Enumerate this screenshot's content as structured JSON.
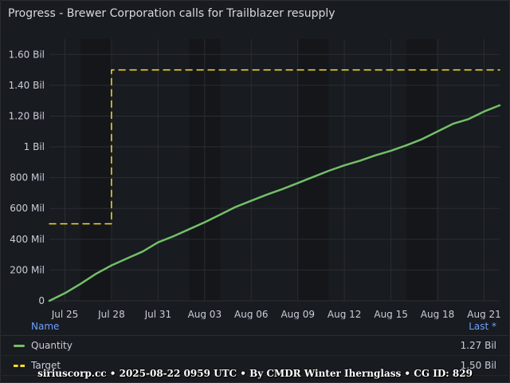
{
  "panel": {
    "title": "Progress - Brewer Corporation calls for Trailblazer resupply"
  },
  "legend": {
    "name_header": "Name",
    "last_header": "Last *",
    "rows": [
      {
        "label": "Quantity",
        "value": "1.27 Bil",
        "color": "#73bf69",
        "style": "solid"
      },
      {
        "label": "Target",
        "value": "1.50 Bil",
        "color": "#fade2a",
        "style": "dashed"
      }
    ]
  },
  "footer": {
    "text": "siriuscorp.cc • 2025-08-22 0959 UTC • By CMDR Winter Ihernglass • CG ID: 829"
  },
  "chart_data": {
    "type": "line",
    "x_ticks": [
      "Jul 25",
      "Jul 28",
      "Jul 31",
      "Aug 03",
      "Aug 06",
      "Aug 09",
      "Aug 12",
      "Aug 15",
      "Aug 18",
      "Aug 21"
    ],
    "y_ticks": [
      "0",
      "200 Mil",
      "400 Mil",
      "600 Mil",
      "800 Mil",
      "1 Bil",
      "1.20 Bil",
      "1.40 Bil",
      "1.60 Bil"
    ],
    "xlim": [
      "2025-07-24",
      "2025-08-22"
    ],
    "ylim": [
      0,
      1700000000
    ],
    "grid": true,
    "legend_position": "bottom",
    "series": [
      {
        "name": "Quantity",
        "color": "#73bf69",
        "style": "solid",
        "points": [
          [
            "2025-07-24",
            0
          ],
          [
            "2025-07-25",
            50000000
          ],
          [
            "2025-07-26",
            110000000
          ],
          [
            "2025-07-27",
            175000000
          ],
          [
            "2025-07-28",
            230000000
          ],
          [
            "2025-07-29",
            275000000
          ],
          [
            "2025-07-30",
            320000000
          ],
          [
            "2025-07-31",
            380000000
          ],
          [
            "2025-08-01",
            420000000
          ],
          [
            "2025-08-02",
            465000000
          ],
          [
            "2025-08-03",
            510000000
          ],
          [
            "2025-08-04",
            560000000
          ],
          [
            "2025-08-05",
            610000000
          ],
          [
            "2025-08-06",
            650000000
          ],
          [
            "2025-08-07",
            690000000
          ],
          [
            "2025-08-08",
            725000000
          ],
          [
            "2025-08-09",
            765000000
          ],
          [
            "2025-08-10",
            805000000
          ],
          [
            "2025-08-11",
            845000000
          ],
          [
            "2025-08-12",
            880000000
          ],
          [
            "2025-08-13",
            910000000
          ],
          [
            "2025-08-14",
            945000000
          ],
          [
            "2025-08-15",
            975000000
          ],
          [
            "2025-08-16",
            1010000000
          ],
          [
            "2025-08-17",
            1050000000
          ],
          [
            "2025-08-18",
            1100000000
          ],
          [
            "2025-08-19",
            1150000000
          ],
          [
            "2025-08-20",
            1180000000
          ],
          [
            "2025-08-21",
            1230000000
          ],
          [
            "2025-08-22",
            1270000000
          ]
        ]
      },
      {
        "name": "Target",
        "color": "#fade2a",
        "style": "dashed",
        "points": [
          [
            "2025-07-24",
            500000000
          ],
          [
            "2025-07-28",
            500000000
          ],
          [
            "2025-07-28",
            1500000000
          ],
          [
            "2025-08-22",
            1500000000
          ]
        ]
      }
    ]
  }
}
